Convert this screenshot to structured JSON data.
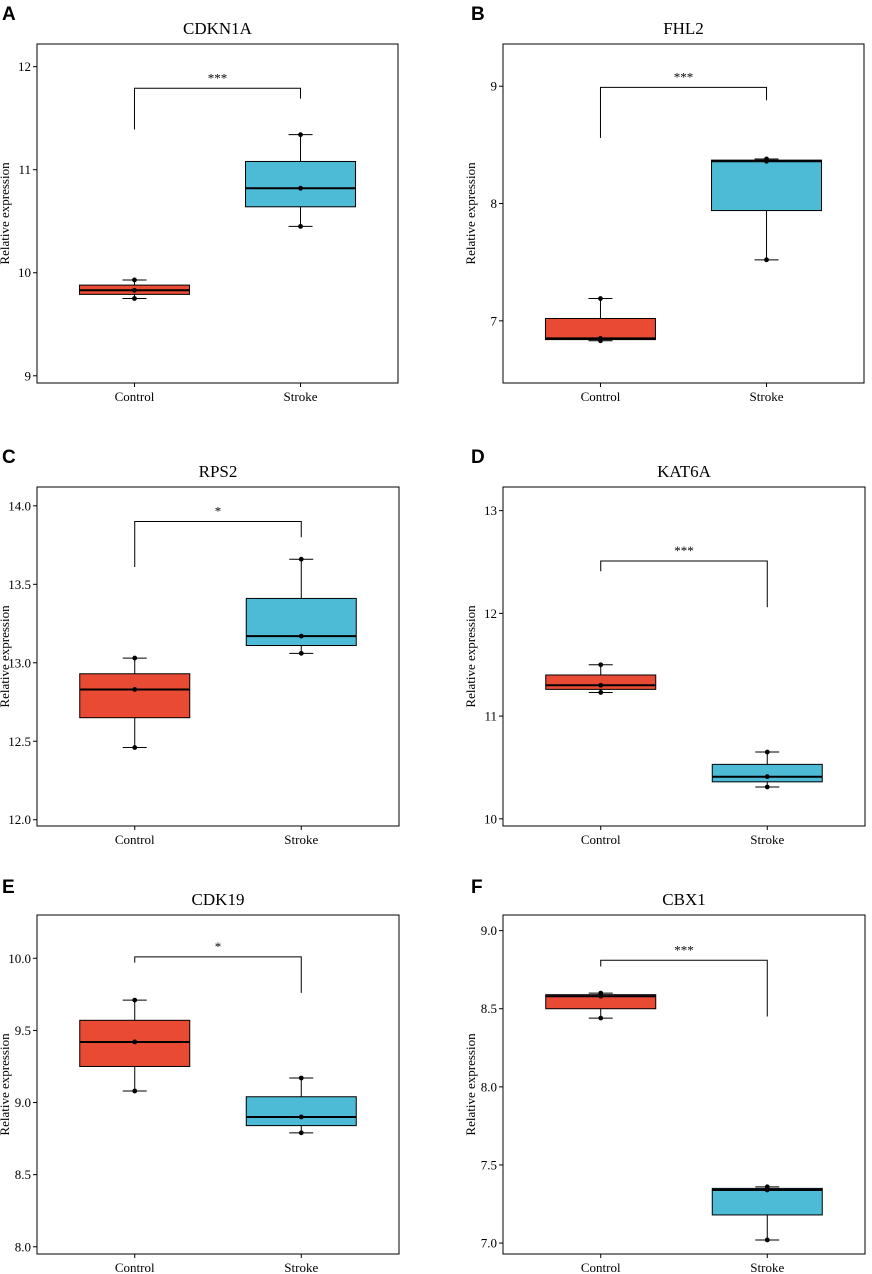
{
  "colors": {
    "control": "#e84a33",
    "stroke": "#4dbbd5"
  },
  "ylabel": "Relative expression",
  "chart_data": [
    {
      "type": "box",
      "panel": "A",
      "title": "CDKN1A",
      "ylabel": "Relative expression",
      "ylim": [
        8.93,
        12.22
      ],
      "yticks": [
        9,
        10,
        11,
        12
      ],
      "categories": [
        "Control",
        "Stroke"
      ],
      "series": [
        {
          "name": "Control",
          "min": 9.75,
          "q1": 9.79,
          "median": 9.83,
          "q3": 9.88,
          "max": 9.93,
          "points": [
            9.75,
            9.83,
            9.93
          ]
        },
        {
          "name": "Stroke",
          "min": 10.45,
          "q1": 10.64,
          "median": 10.82,
          "q3": 11.08,
          "max": 11.34,
          "points": [
            10.45,
            10.82,
            11.34
          ]
        }
      ],
      "significance": {
        "label": "***",
        "from": "Control",
        "to": "Stroke",
        "y": 11.79,
        "left_drop": 11.39,
        "right_drop": 11.69
      }
    },
    {
      "type": "box",
      "panel": "B",
      "title": "FHL2",
      "ylabel": "Relative expression",
      "ylim": [
        6.47,
        9.36
      ],
      "yticks": [
        7,
        8,
        9
      ],
      "categories": [
        "Control",
        "Stroke"
      ],
      "series": [
        {
          "name": "Control",
          "min": 6.83,
          "q1": 6.84,
          "median": 6.85,
          "q3": 7.02,
          "max": 7.19,
          "points": [
            6.83,
            6.85,
            7.19
          ]
        },
        {
          "name": "Stroke",
          "min": 7.52,
          "q1": 7.94,
          "median": 8.36,
          "q3": 8.37,
          "max": 8.38,
          "points": [
            7.52,
            8.36,
            8.38
          ]
        }
      ],
      "significance": {
        "label": "***",
        "from": "Control",
        "to": "Stroke",
        "y": 8.99,
        "left_drop": 8.56,
        "right_drop": 8.88
      }
    },
    {
      "type": "box",
      "panel": "C",
      "title": "RPS2",
      "ylabel": "Relative expression",
      "ylim": [
        11.96,
        14.12
      ],
      "yticks": [
        12.0,
        12.5,
        13.0,
        13.5,
        14.0
      ],
      "categories": [
        "Control",
        "Stroke"
      ],
      "series": [
        {
          "name": "Control",
          "min": 12.46,
          "q1": 12.65,
          "median": 12.83,
          "q3": 12.93,
          "max": 13.03,
          "points": [
            12.46,
            12.83,
            13.03
          ]
        },
        {
          "name": "Stroke",
          "min": 13.06,
          "q1": 13.11,
          "median": 13.17,
          "q3": 13.41,
          "max": 13.66,
          "points": [
            13.06,
            13.17,
            13.66
          ]
        }
      ],
      "significance": {
        "label": "*",
        "from": "Control",
        "to": "Stroke",
        "y": 13.9,
        "left_drop": 13.61,
        "right_drop": 13.8
      }
    },
    {
      "type": "box",
      "panel": "D",
      "title": "KAT6A",
      "ylabel": "Relative expression",
      "ylim": [
        9.93,
        13.23
      ],
      "yticks": [
        10,
        11,
        12,
        13
      ],
      "categories": [
        "Control",
        "Stroke"
      ],
      "series": [
        {
          "name": "Control",
          "min": 11.23,
          "q1": 11.26,
          "median": 11.3,
          "q3": 11.4,
          "max": 11.5,
          "points": [
            11.23,
            11.3,
            11.5
          ]
        },
        {
          "name": "Stroke",
          "min": 10.31,
          "q1": 10.36,
          "median": 10.41,
          "q3": 10.53,
          "max": 10.65,
          "points": [
            10.31,
            10.41,
            10.65
          ]
        }
      ],
      "significance": {
        "label": "***",
        "from": "Control",
        "to": "Stroke",
        "y": 12.51,
        "left_drop": 12.41,
        "right_drop": 12.06
      }
    },
    {
      "type": "box",
      "panel": "E",
      "title": "CDK19",
      "ylabel": "Relative expression",
      "ylim": [
        7.95,
        10.3
      ],
      "yticks": [
        8.0,
        8.5,
        9.0,
        9.5,
        10.0
      ],
      "categories": [
        "Control",
        "Stroke"
      ],
      "series": [
        {
          "name": "Control",
          "min": 9.08,
          "q1": 9.25,
          "median": 9.42,
          "q3": 9.57,
          "max": 9.71,
          "points": [
            9.08,
            9.42,
            9.71
          ]
        },
        {
          "name": "Stroke",
          "min": 8.79,
          "q1": 8.84,
          "median": 8.9,
          "q3": 9.04,
          "max": 9.17,
          "points": [
            8.79,
            8.9,
            9.17
          ]
        }
      ],
      "significance": {
        "label": "*",
        "from": "Control",
        "to": "Stroke",
        "y": 10.01,
        "left_drop": 9.97,
        "right_drop": 9.76
      }
    },
    {
      "type": "box",
      "panel": "F",
      "title": "CBX1",
      "ylabel": "Relative expression",
      "ylim": [
        6.93,
        9.1
      ],
      "yticks": [
        7.0,
        7.5,
        8.0,
        8.5,
        9.0
      ],
      "categories": [
        "Control",
        "Stroke"
      ],
      "series": [
        {
          "name": "Control",
          "min": 8.44,
          "q1": 8.5,
          "median": 8.58,
          "q3": 8.59,
          "max": 8.6,
          "points": [
            8.44,
            8.58,
            8.6
          ]
        },
        {
          "name": "Stroke",
          "min": 7.02,
          "q1": 7.18,
          "median": 7.34,
          "q3": 7.35,
          "max": 7.36,
          "points": [
            7.02,
            7.34,
            7.36
          ]
        }
      ],
      "significance": {
        "label": "***",
        "from": "Control",
        "to": "Stroke",
        "y": 8.81,
        "left_drop": 8.77,
        "right_drop": 8.45
      }
    }
  ]
}
